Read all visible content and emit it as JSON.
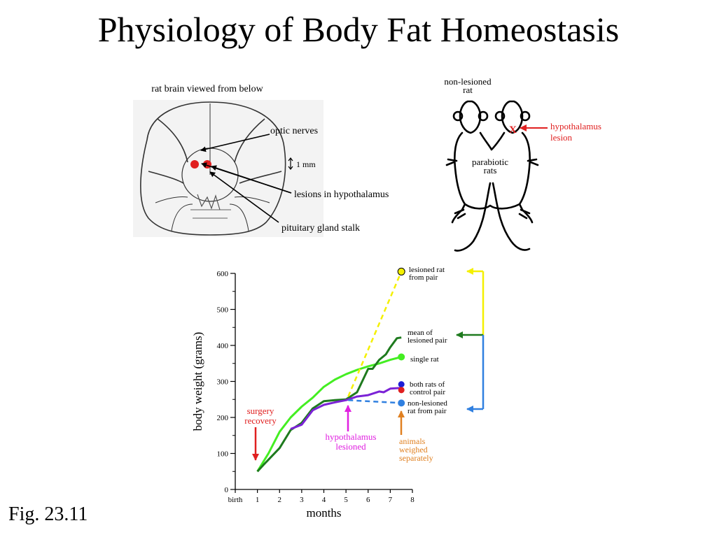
{
  "slide": {
    "title": "Physiology of Body Fat Homeostasis",
    "figure_label": "Fig. 23.11"
  },
  "brain_diagram": {
    "caption": "rat brain viewed from below",
    "labels": {
      "optic": "optic nerves",
      "scale": "1 mm",
      "lesions": "lesions in hypothalamus",
      "stalk": "pituitary gland stalk"
    }
  },
  "rats_diagram": {
    "labels": {
      "nonlesioned_l1": "non-lesioned",
      "nonlesioned_l2": "rat",
      "lesion_l1": "hypothalamus",
      "lesion_l2": "lesion",
      "parabiotic_l1": "parabiotic",
      "parabiotic_l2": "rats"
    },
    "lesion_mark": "X"
  },
  "colors": {
    "lesion_red": "#e02020",
    "lesioned_yellow": "#f4f000",
    "mean_green": "#1e7a1e",
    "single_green": "#44ee22",
    "control_purple": "#7b22d6",
    "control_blue": "#1d1dd6",
    "nonlesioned_blue": "#3080e0",
    "magenta": "#e020e0",
    "orange": "#e08020"
  },
  "chart_data": {
    "type": "line",
    "xlabel": "months",
    "ylabel": "body weight (grams)",
    "xlim": [
      0,
      8
    ],
    "ylim": [
      0,
      600
    ],
    "x_ticks": [
      0,
      1,
      2,
      3,
      4,
      5,
      6,
      7,
      8
    ],
    "x_tick_labels": [
      "birth",
      "1",
      "2",
      "3",
      "4",
      "5",
      "6",
      "7",
      "8"
    ],
    "y_ticks": [
      0,
      100,
      200,
      300,
      400,
      500,
      600
    ],
    "y_tick_labels": [
      "0",
      "100",
      "200",
      "300",
      "400",
      "500",
      "600"
    ],
    "series": [
      {
        "name": "single rat",
        "color": "#44ee22",
        "x": [
          1,
          1.5,
          2,
          2.5,
          3,
          3.5,
          4,
          4.5,
          5,
          5.5,
          6,
          6.5,
          7,
          7.5
        ],
        "y": [
          50,
          100,
          160,
          200,
          230,
          255,
          285,
          305,
          320,
          332,
          342,
          350,
          360,
          368
        ],
        "end_marker": true
      },
      {
        "name": "mean of lesioned pair",
        "color": "#1e7a1e",
        "x": [
          1,
          1.3,
          2,
          2.5,
          3,
          3.5,
          4,
          4.5,
          5,
          5.5,
          6,
          6.2,
          6.5,
          6.8,
          7,
          7.3,
          7.5
        ],
        "y": [
          50,
          70,
          115,
          165,
          185,
          225,
          245,
          248,
          250,
          270,
          335,
          335,
          360,
          375,
          395,
          420,
          422
        ]
      },
      {
        "name": "lesioned rat from pair",
        "color": "#f4f000",
        "dashed": true,
        "x": [
          5.1,
          7.5
        ],
        "y": [
          258,
          605
        ],
        "end_marker": true
      },
      {
        "name": "both rats of control pair",
        "color": "#7b22d6",
        "x": [
          2.5,
          3,
          3.5,
          4,
          4.5,
          5,
          5.5,
          6,
          6.5,
          6.7,
          7,
          7.5
        ],
        "y": [
          168,
          180,
          220,
          235,
          242,
          248,
          258,
          262,
          272,
          270,
          280,
          282
        ],
        "end_markers": [
          {
            "y": 292,
            "color": "#1d1dd6"
          },
          {
            "y": 276,
            "color": "#e02020"
          }
        ]
      },
      {
        "name": "non-lesioned rat from pair",
        "color": "#3080e0",
        "dashed": true,
        "x": [
          5.1,
          7.5
        ],
        "y": [
          248,
          240
        ],
        "end_marker": true
      }
    ],
    "annotations": {
      "surgery": [
        "surgery",
        "recovery"
      ],
      "hypothalamus": [
        "hypothalamus",
        "lesioned"
      ],
      "weighed": [
        "animals",
        "weighed",
        "separately"
      ]
    },
    "series_labels": {
      "lesioned": [
        "lesioned rat",
        "from pair"
      ],
      "mean": [
        "mean of",
        "lesioned pair"
      ],
      "single": [
        "single rat"
      ],
      "control": [
        "both rats of",
        "control pair"
      ],
      "nonlesioned": [
        "non-lesioned",
        "rat from pair"
      ]
    }
  }
}
